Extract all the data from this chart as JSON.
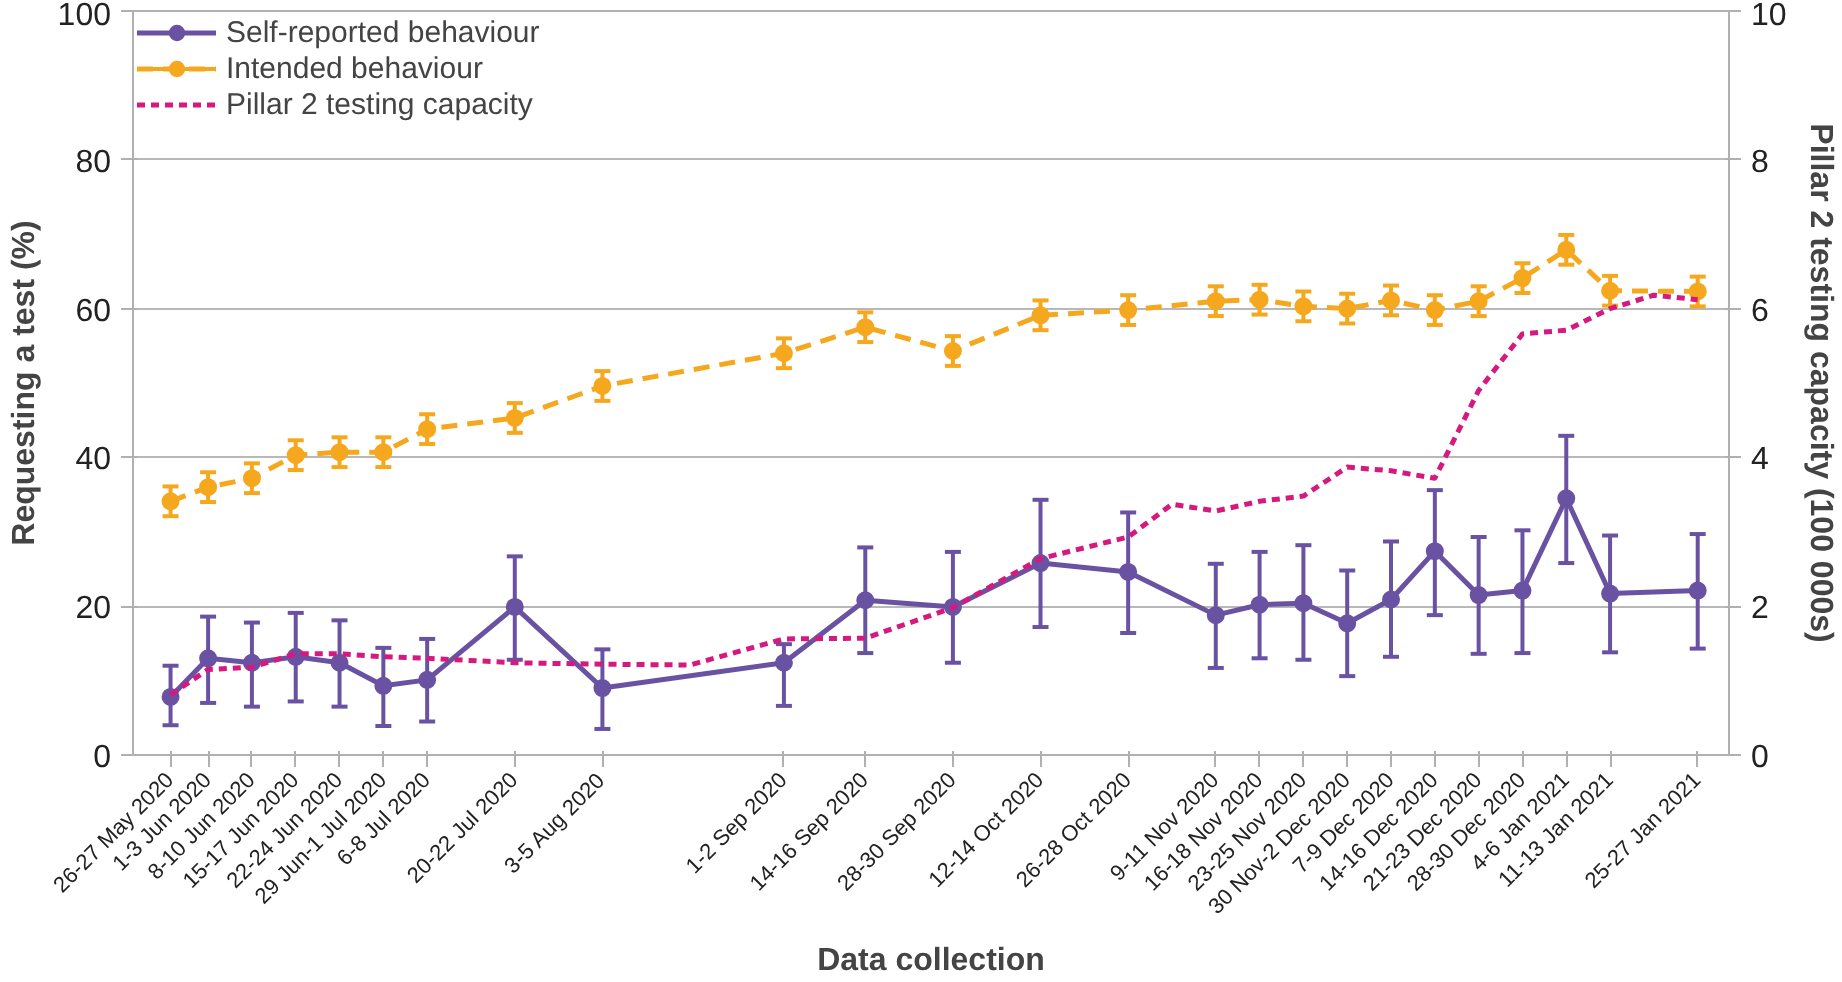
{
  "chart_data": {
    "type": "line",
    "xlabel": "Data collection",
    "ylabel": "Requesting a test (%)",
    "y2label": "Pillar 2 testing capacity (100 000s)",
    "x": [
      "2020-05-26",
      "2020-06-01",
      "2020-06-08",
      "2020-06-15",
      "2020-06-22",
      "2020-06-29",
      "2020-07-06",
      "2020-07-20",
      "2020-08-03",
      "2020-09-01",
      "2020-09-14",
      "2020-09-28",
      "2020-10-12",
      "2020-10-26",
      "2020-11-09",
      "2020-11-16",
      "2020-11-23",
      "2020-11-30",
      "2020-12-07",
      "2020-12-14",
      "2020-12-21",
      "2020-12-28",
      "2021-01-04",
      "2021-01-11",
      "2021-01-25"
    ],
    "xlim": [
      "2020-05-20",
      "2021-01-30"
    ],
    "xticks": [
      {
        "value": "2020-05-26",
        "label": "26-27 May 2020"
      },
      {
        "value": "2020-06-01",
        "label": "1-3 Jun 2020"
      },
      {
        "value": "2020-06-08",
        "label": "8-10 Jun 2020"
      },
      {
        "value": "2020-06-15",
        "label": "15-17 Jun 2020"
      },
      {
        "value": "2020-06-22",
        "label": "22-24 Jun 2020"
      },
      {
        "value": "2020-06-29",
        "label": "29 Jun-1 Jul 2020"
      },
      {
        "value": "2020-07-06",
        "label": "6-8 Jul 2020"
      },
      {
        "value": "2020-07-20",
        "label": "20-22 Jul 2020"
      },
      {
        "value": "2020-08-03",
        "label": "3-5 Aug 2020"
      },
      {
        "value": "2020-09-01",
        "label": "1-2 Sep 2020"
      },
      {
        "value": "2020-09-14",
        "label": "14-16 Sep 2020"
      },
      {
        "value": "2020-09-28",
        "label": "28-30 Sep 2020"
      },
      {
        "value": "2020-10-12",
        "label": "12-14 Oct 2020"
      },
      {
        "value": "2020-10-26",
        "label": "26-28 Oct 2020"
      },
      {
        "value": "2020-11-09",
        "label": "9-11 Nov 2020"
      },
      {
        "value": "2020-11-16",
        "label": "16-18 Nov 2020"
      },
      {
        "value": "2020-11-23",
        "label": "23-25 Nov 2020"
      },
      {
        "value": "2020-11-30",
        "label": "30 Nov-2 Dec 2020"
      },
      {
        "value": "2020-12-07",
        "label": "7-9 Dec 2020"
      },
      {
        "value": "2020-12-14",
        "label": "14-16 Dec 2020"
      },
      {
        "value": "2020-12-21",
        "label": "21-23 Dec 2020"
      },
      {
        "value": "2020-12-28",
        "label": "28-30 Dec 2020"
      },
      {
        "value": "2021-01-04",
        "label": "4-6 Jan 2021"
      },
      {
        "value": "2021-01-11",
        "label": "11-13 Jan 2021"
      },
      {
        "value": "2021-01-25",
        "label": "25-27 Jan 2021"
      }
    ],
    "ylim": [
      0,
      100
    ],
    "yticks": [
      0,
      20,
      40,
      60,
      80,
      100
    ],
    "y2lim": [
      0,
      10
    ],
    "y2ticks": [
      0,
      2,
      4,
      6,
      8,
      10
    ],
    "grid": "y",
    "legend": "top left",
    "series": [
      {
        "name": "Self-reported behaviour",
        "color": "#6a52a3",
        "marker": "circle",
        "line_style": "solid",
        "values": [
          7.8,
          13.0,
          12.4,
          13.2,
          12.4,
          9.3,
          10.1,
          19.9,
          9.0,
          12.4,
          20.8,
          19.9,
          25.8,
          24.6,
          18.8,
          20.2,
          20.4,
          17.7,
          20.9,
          27.4,
          21.5,
          22.1,
          34.5,
          21.7,
          22.1
        ],
        "errors": [
          [
            4,
            12
          ],
          [
            7,
            18.6
          ],
          [
            6.5,
            17.8
          ],
          [
            7.2,
            19.1
          ],
          [
            6.5,
            18.1
          ],
          [
            3.9,
            14.4
          ],
          [
            4.5,
            15.6
          ],
          [
            12.8,
            26.7
          ],
          [
            3.5,
            14.2
          ],
          [
            6.6,
            14.9
          ],
          [
            13.7,
            27.9
          ],
          [
            12.4,
            27.3
          ],
          [
            17.2,
            34.3
          ],
          [
            16.4,
            32.6
          ],
          [
            11.7,
            25.7
          ],
          [
            13,
            27.3
          ],
          [
            12.8,
            28.2
          ],
          [
            10.6,
            24.8
          ],
          [
            13.2,
            28.7
          ],
          [
            18.8,
            35.6
          ],
          [
            13.6,
            29.3
          ],
          [
            13.7,
            30.2
          ],
          [
            25.8,
            42.9
          ],
          [
            13.8,
            29.5
          ],
          [
            14.3,
            29.7
          ]
        ]
      },
      {
        "name": "Intended behaviour",
        "color": "#f5a81e",
        "marker": "circle",
        "line_style": "dashed",
        "values": [
          34.1,
          36.0,
          37.2,
          40.3,
          40.7,
          40.7,
          43.8,
          45.3,
          49.6,
          54.0,
          57.5,
          54.3,
          59.1,
          59.8,
          61.0,
          61.2,
          60.3,
          60.0,
          61.1,
          59.8,
          61.0,
          64.1,
          67.9,
          62.4,
          62.3
        ],
        "errors": [
          2,
          2,
          2,
          2,
          2,
          2,
          2,
          2,
          2,
          2,
          2,
          2,
          2,
          2,
          2,
          2,
          2,
          2,
          2,
          2,
          2,
          2,
          2,
          2,
          2
        ]
      },
      {
        "name": "Pillar 2 testing capacity",
        "color": "#d6197f",
        "marker": "none",
        "line_style": "dotted",
        "axis": "y2",
        "x": [
          "2020-05-26",
          "2020-06-01",
          "2020-06-08",
          "2020-06-15",
          "2020-06-22",
          "2020-06-29",
          "2020-07-06",
          "2020-07-20",
          "2020-08-03",
          "2020-08-17",
          "2020-09-01",
          "2020-09-14",
          "2020-09-28",
          "2020-10-12",
          "2020-10-26",
          "2020-11-02",
          "2020-11-09",
          "2020-11-16",
          "2020-11-23",
          "2020-11-30",
          "2020-12-07",
          "2020-12-14",
          "2020-12-21",
          "2020-12-28",
          "2021-01-04",
          "2021-01-11",
          "2021-01-18",
          "2021-01-25"
        ],
        "values": [
          0.81,
          1.15,
          1.18,
          1.36,
          1.36,
          1.32,
          1.3,
          1.24,
          1.22,
          1.21,
          1.56,
          1.57,
          1.98,
          2.64,
          2.93,
          3.37,
          3.28,
          3.41,
          3.48,
          3.87,
          3.82,
          3.72,
          4.9,
          5.66,
          5.71,
          6.0,
          6.18,
          6.12
        ]
      }
    ]
  }
}
